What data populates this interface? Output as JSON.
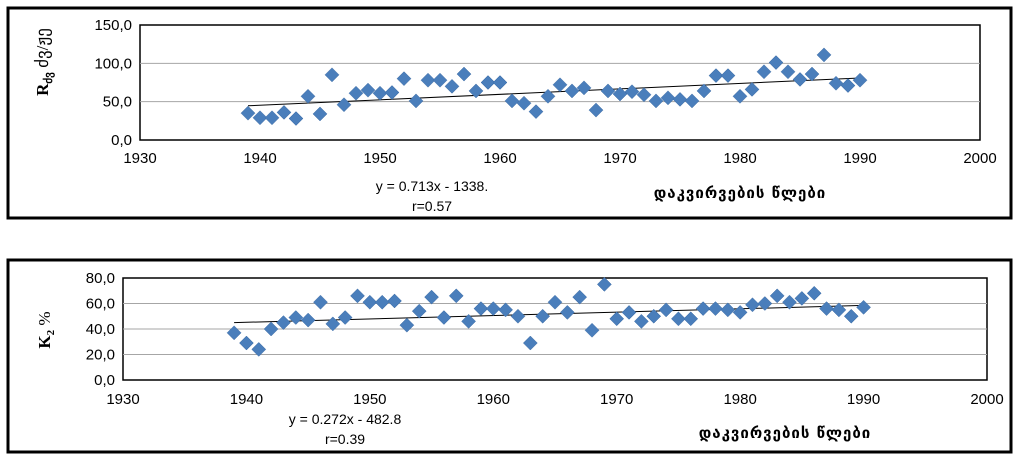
{
  "colors": {
    "marker": "#4a7ebb",
    "trend": "#000000",
    "grid": "#a6a6a6",
    "frame": "#000000"
  },
  "chart_data": [
    {
      "type": "scatter",
      "ylabel": "R",
      "ylabel_sub": "ძვ",
      "ylabel_rest": " ძვ/ჟე",
      "xlabel": "დაკვირვების წლები",
      "xlim": [
        1930,
        2000
      ],
      "ylim": [
        0,
        150
      ],
      "x_ticks": [
        "1930",
        "1940",
        "1950",
        "1960",
        "1970",
        "1980",
        "1990",
        "2000"
      ],
      "y_ticks": [
        "0,0",
        "50,0",
        "100,0",
        "150,0"
      ],
      "equation": "y = 0.713x - 1338.",
      "r_label": "r=0.57",
      "trendline": {
        "x": [
          1939,
          1990
        ],
        "y": [
          44.6,
          80.9
        ]
      },
      "grid": true,
      "legend": "none",
      "x": [
        1939,
        1940,
        1941,
        1942,
        1943,
        1944,
        1945,
        1946,
        1947,
        1948,
        1949,
        1950,
        1951,
        1952,
        1953,
        1954,
        1955,
        1956,
        1957,
        1958,
        1959,
        1960,
        1961,
        1962,
        1963,
        1964,
        1965,
        1966,
        1967,
        1968,
        1969,
        1970,
        1971,
        1972,
        1973,
        1974,
        1975,
        1976,
        1977,
        1978,
        1979,
        1980,
        1981,
        1982,
        1983,
        1984,
        1985,
        1986,
        1987,
        1988,
        1989,
        1990
      ],
      "y": [
        35,
        29,
        29,
        36,
        28,
        57,
        34,
        85,
        46,
        61,
        65,
        61,
        62,
        80,
        51,
        78,
        78,
        70,
        86,
        64,
        75,
        75,
        51,
        48,
        37,
        57,
        72,
        64,
        68,
        39,
        64,
        60,
        63,
        59,
        51,
        55,
        53,
        51,
        64,
        84,
        84,
        57,
        66,
        89,
        101,
        89,
        79,
        86,
        111,
        74,
        71,
        78
      ]
    },
    {
      "type": "scatter",
      "ylabel": "K",
      "ylabel_sub": "2",
      "ylabel_rest": " %",
      "xlabel": "დაკვირვების წლები",
      "xlim": [
        1930,
        2000
      ],
      "ylim": [
        0,
        80
      ],
      "x_ticks": [
        "1930",
        "1940",
        "1950",
        "1960",
        "1970",
        "1980",
        "1990",
        "2000"
      ],
      "y_ticks": [
        "0,0",
        "20,0",
        "40,0",
        "60,0",
        "80,0"
      ],
      "equation": "y = 0.272x - 482.8",
      "r_label": "r=0.39",
      "trendline": {
        "x": [
          1939,
          1990
        ],
        "y": [
          45.0,
          58.5
        ]
      },
      "grid": true,
      "legend": "none",
      "x": [
        1939,
        1940,
        1941,
        1942,
        1943,
        1944,
        1945,
        1946,
        1947,
        1948,
        1949,
        1950,
        1951,
        1952,
        1953,
        1954,
        1955,
        1956,
        1957,
        1958,
        1959,
        1960,
        1961,
        1962,
        1963,
        1964,
        1965,
        1966,
        1967,
        1968,
        1969,
        1970,
        1971,
        1972,
        1973,
        1974,
        1975,
        1976,
        1977,
        1978,
        1979,
        1980,
        1981,
        1982,
        1983,
        1984,
        1985,
        1986,
        1987,
        1988,
        1989,
        1990
      ],
      "y": [
        37,
        29,
        24,
        40,
        45,
        49,
        47,
        61,
        44,
        49,
        66,
        61,
        61,
        62,
        43,
        54,
        65,
        49,
        66,
        46,
        56,
        56,
        55,
        50,
        29,
        50,
        61,
        53,
        65,
        39,
        75,
        48,
        53,
        46,
        50,
        55,
        48,
        48,
        56,
        56,
        55,
        53,
        59,
        60,
        66,
        61,
        64,
        68,
        56,
        55,
        50,
        57
      ]
    }
  ]
}
